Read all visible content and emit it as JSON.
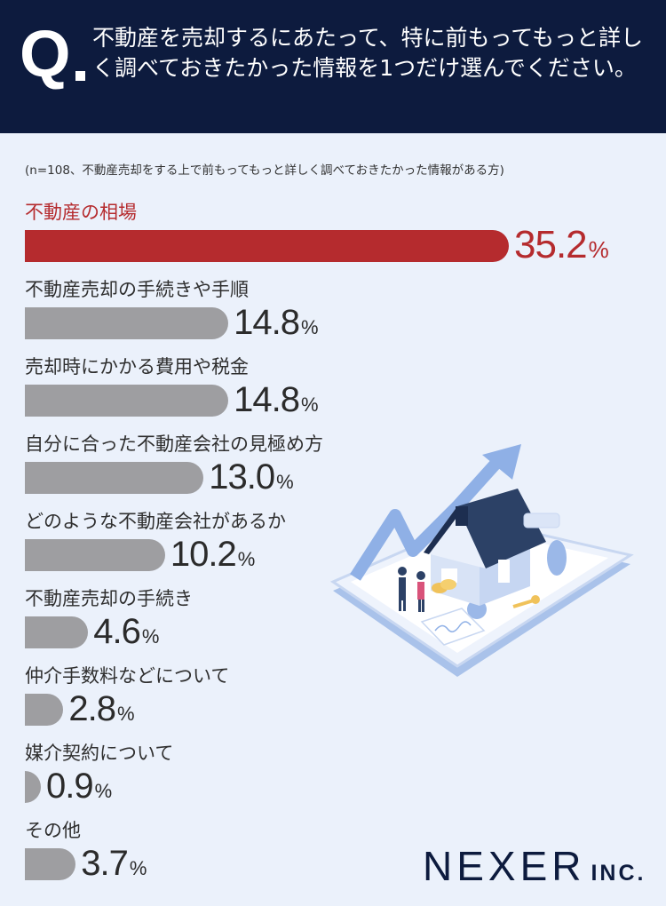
{
  "question": {
    "mark": "Q",
    "text": "不動産を売却するにあたって、特に前もってもっと詳しく調べておきたかった情報を1つだけ選んでください。"
  },
  "note": "(n=108、不動産売却をする上で前もってもっと詳しく調べておきたかった情報がある方)",
  "brand": {
    "name": "NEXER",
    "suffix": "INC."
  },
  "colors": {
    "header": "#0d1b3e",
    "highlight": "#b52b2e",
    "bar": "#9e9ea1",
    "background": "#ebf1fb"
  },
  "chart_data": {
    "type": "bar",
    "orientation": "horizontal",
    "unit": "%",
    "categories": [
      "不動産の相場",
      "不動産売却の手続きや手順",
      "売却時にかかる費用や税金",
      "自分に合った不動産会社の見極め方",
      "どのような不動産会社があるか",
      "不動産売却の手続き",
      "仲介手数料などについて",
      "媒介契約について",
      "その他"
    ],
    "values": [
      35.2,
      14.8,
      14.8,
      13.0,
      10.2,
      4.6,
      2.8,
      0.9,
      3.7
    ],
    "value_labels": [
      "35.2",
      "14.8",
      "14.8",
      "13.0",
      "10.2",
      "4.6",
      "2.8",
      "0.9",
      "3.7"
    ],
    "highlight_index": 0
  }
}
